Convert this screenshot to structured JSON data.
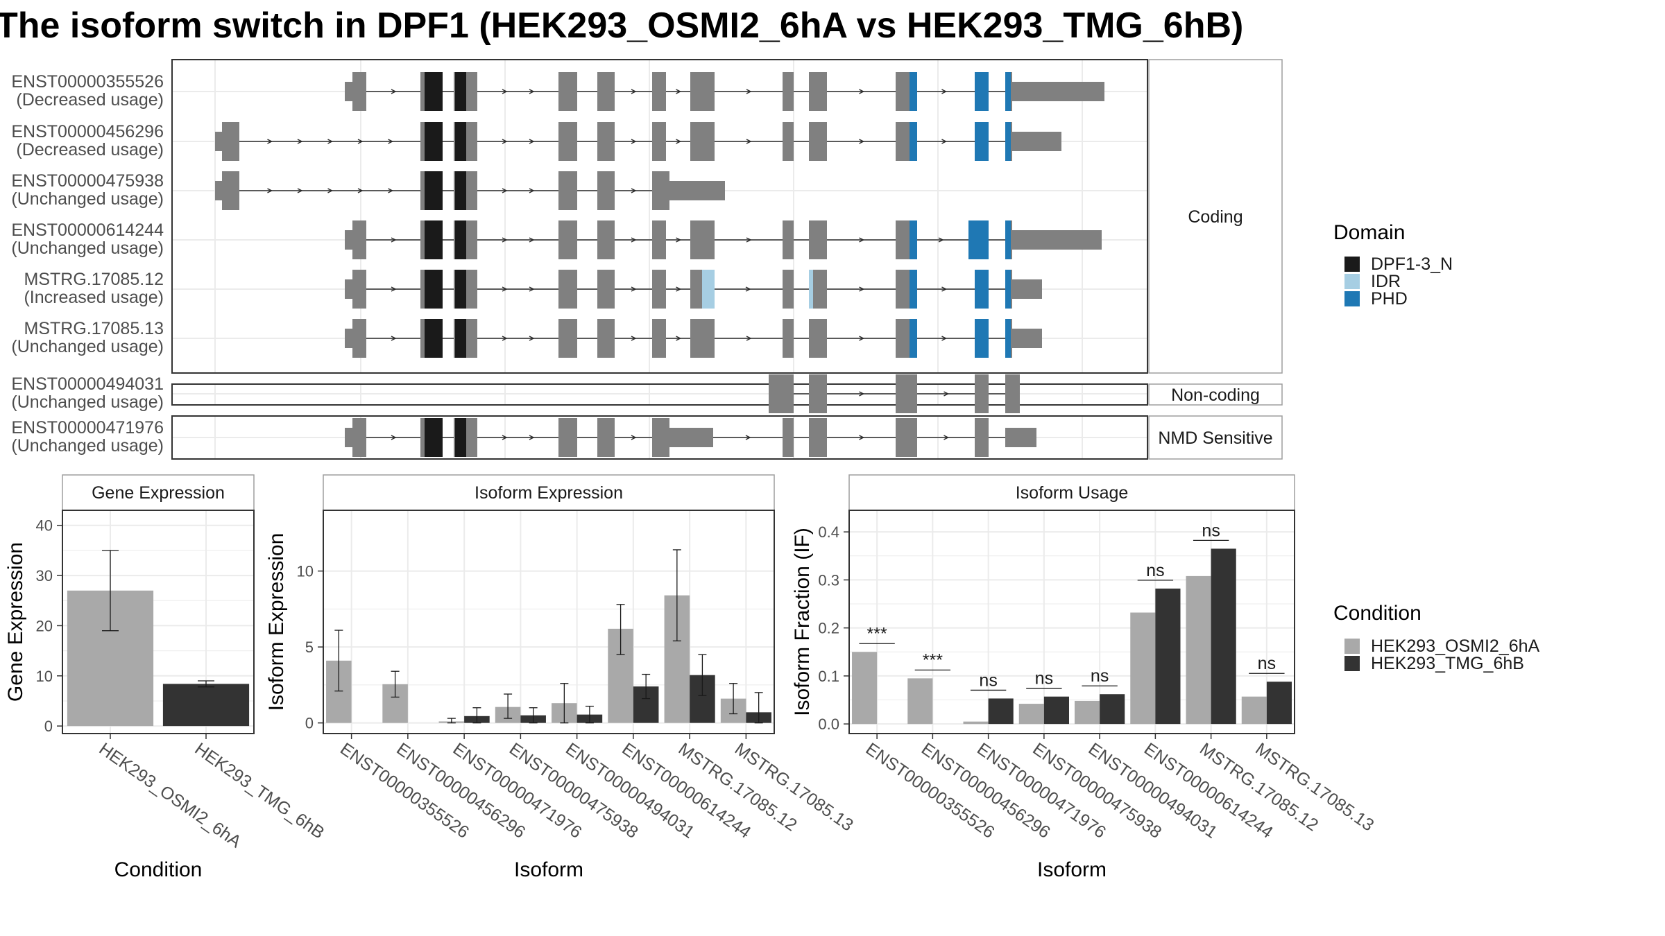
{
  "title": "The isoform switch in DPF1 (HEK293_OSMI2_6hA vs HEK293_TMG_6hB)",
  "colors": {
    "exon": "#808080",
    "intron": "#2b2b2b",
    "cond_a": "#a9a9a9",
    "cond_b": "#333333",
    "panel_border": "#333333",
    "strip_border": "#9e9e9e",
    "grid": "#ebebeb"
  },
  "domain_legend": {
    "title": "Domain",
    "entries": [
      {
        "name": "DPF1-3_N",
        "color": "#1a1a1a"
      },
      {
        "name": "IDR",
        "color": "#a6cee3"
      },
      {
        "name": "PHD",
        "color": "#1f78b4"
      }
    ]
  },
  "condition_legend": {
    "title": "Condition",
    "entries": [
      {
        "name": "HEK293_OSMI2_6hA",
        "color": "#a9a9a9"
      },
      {
        "name": "HEK293_TMG_6hB",
        "color": "#333333"
      }
    ]
  },
  "gene_structure": {
    "groups": [
      {
        "label": "Coding",
        "isoforms": [
          {
            "id": "ENST00000355526",
            "usage": "(Decreased usage)"
          },
          {
            "id": "ENST00000456296",
            "usage": "(Decreased usage)"
          },
          {
            "id": "ENST00000475938",
            "usage": "(Unchanged usage)"
          },
          {
            "id": "ENST00000614244",
            "usage": "(Unchanged usage)"
          },
          {
            "id": "MSTRG.17085.12",
            "usage": "(Increased usage)"
          },
          {
            "id": "MSTRG.17085.13",
            "usage": "(Unchanged usage)"
          }
        ]
      },
      {
        "label": "Non-coding",
        "isoforms": [
          {
            "id": "ENST00000494031",
            "usage": "(Unchanged usage)"
          }
        ]
      },
      {
        "label": "NMD Sensitive",
        "isoforms": [
          {
            "id": "ENST00000471976",
            "usage": "(Unchanged usage)"
          }
        ]
      }
    ]
  },
  "chart_data": [
    {
      "type": "bar",
      "title": "Gene Expression",
      "xlabel": "Condition",
      "ylabel": "Gene Expression",
      "categories": [
        "HEK293_OSMI2_6hA",
        "HEK293_TMG_6hB"
      ],
      "values": [
        27,
        8.4
      ],
      "error_low": [
        19,
        7.8
      ],
      "error_high": [
        35,
        9.0
      ],
      "ylim": [
        -1.5,
        43
      ],
      "yticks": [
        0,
        10,
        20,
        30,
        40
      ]
    },
    {
      "type": "bar",
      "title": "Isoform Expression",
      "xlabel": "Isoform",
      "ylabel": "Isoform Expression",
      "categories": [
        "ENST00000355526",
        "ENST00000456296",
        "ENST00000471976",
        "ENST00000475938",
        "ENST00000494031",
        "ENST00000614244",
        "MSTRG.17085.12",
        "MSTRG.17085.13"
      ],
      "series": [
        {
          "name": "HEK293_OSMI2_6hA",
          "values": [
            4.1,
            2.55,
            0.1,
            1.05,
            1.3,
            6.2,
            8.4,
            1.6
          ],
          "error_low": [
            2.1,
            1.7,
            0.0,
            0.3,
            0.0,
            4.5,
            5.4,
            0.6
          ],
          "error_high": [
            6.1,
            3.4,
            0.3,
            1.9,
            2.6,
            7.8,
            11.4,
            2.6
          ]
        },
        {
          "name": "HEK293_TMG_6hB",
          "values": [
            0.0,
            0.0,
            0.45,
            0.5,
            0.55,
            2.4,
            3.15,
            0.7
          ],
          "error_low": [
            0.0,
            0.0,
            0.0,
            0.0,
            0.0,
            1.6,
            1.8,
            0.0
          ],
          "error_high": [
            0.0,
            0.0,
            1.0,
            1.0,
            1.1,
            3.2,
            4.5,
            2.0
          ]
        }
      ],
      "ylim": [
        -0.7,
        14.0
      ],
      "yticks": [
        0,
        5,
        10
      ]
    },
    {
      "type": "bar",
      "title": "Isoform Usage",
      "xlabel": "Isoform",
      "ylabel": "Isoform Fraction (IF)",
      "categories": [
        "ENST00000355526",
        "ENST00000456296",
        "ENST00000471976",
        "ENST00000475938",
        "ENST00000494031",
        "ENST00000614244",
        "MSTRG.17085.12",
        "MSTRG.17085.13"
      ],
      "series": [
        {
          "name": "HEK293_OSMI2_6hA",
          "values": [
            0.15,
            0.095,
            0.005,
            0.042,
            0.048,
            0.232,
            0.308,
            0.057
          ]
        },
        {
          "name": "HEK293_TMG_6hB",
          "values": [
            0.0,
            0.0,
            0.053,
            0.057,
            0.062,
            0.282,
            0.365,
            0.088
          ]
        }
      ],
      "significance": [
        "***",
        "***",
        "ns",
        "ns",
        "ns",
        "ns",
        "ns",
        "ns"
      ],
      "ylim": [
        -0.02,
        0.445
      ],
      "yticks": [
        0.0,
        0.1,
        0.2,
        0.3,
        0.4
      ],
      "ytick_labels": [
        "0.0",
        "0.1",
        "0.2",
        "0.3",
        "0.4"
      ]
    }
  ]
}
